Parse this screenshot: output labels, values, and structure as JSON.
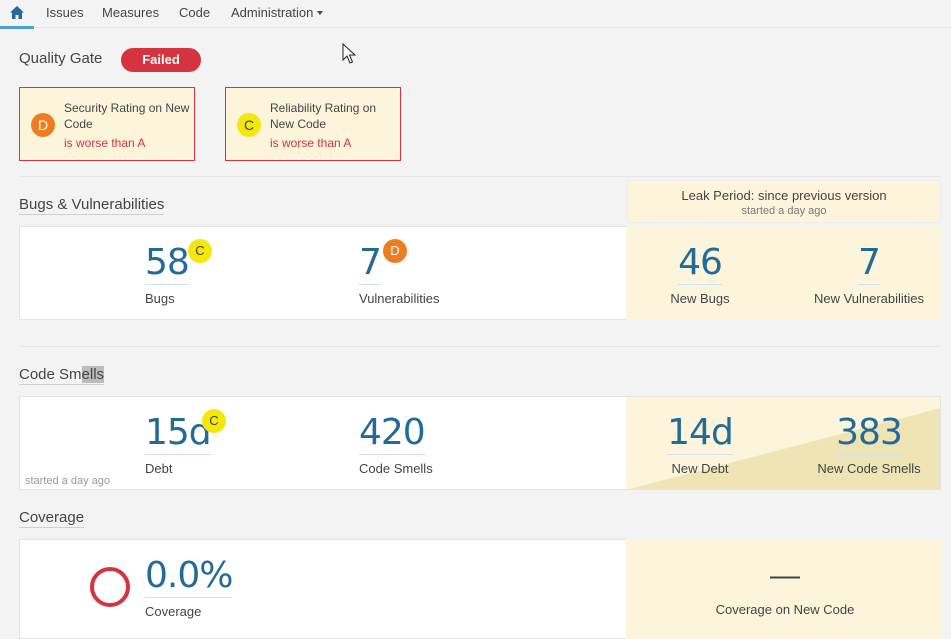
{
  "nav": {
    "items": [
      "Issues",
      "Measures",
      "Code",
      "Administration"
    ]
  },
  "quality_gate": {
    "title": "Quality Gate",
    "status": "Failed",
    "conditions": [
      {
        "rating": "D",
        "metric": "Security Rating on New Code",
        "error": "is worse than A"
      },
      {
        "rating": "C",
        "metric": "Reliability Rating on New Code",
        "error": "is worse than A"
      }
    ]
  },
  "leak": {
    "title": "Leak Period: since previous version",
    "subtitle": "started a day ago"
  },
  "bugs_vulns": {
    "title_part1": "Bugs",
    "title_amp": " & ",
    "title_part2": "Vulnerabilities",
    "bugs": {
      "value": "58",
      "label": "Bugs",
      "rating": "C"
    },
    "vulnerabilities": {
      "value": "7",
      "label": "Vulnerabilities",
      "rating": "D"
    },
    "new_bugs": {
      "value": "46",
      "label": "New Bugs"
    },
    "new_vulnerabilities": {
      "value": "7",
      "label": "New Vulnerabilities"
    }
  },
  "code_smells": {
    "title_a": "Code Sm",
    "title_b": "ells",
    "debt": {
      "value": "15d",
      "label": "Debt",
      "rating": "C"
    },
    "smells": {
      "value": "420",
      "label": "Code Smells"
    },
    "new_debt": {
      "value": "14d",
      "label": "New Debt"
    },
    "new_smells": {
      "value": "383",
      "label": "New Code Smells"
    },
    "note": "started a day ago"
  },
  "coverage": {
    "title": "Coverage",
    "value": "0.0%",
    "label": "Coverage",
    "new_value": "—",
    "new_label": "Coverage on New Code"
  },
  "colors": {
    "accent": "#4b9fd5",
    "error": "#d4333f",
    "rating_d": "#ed7d20",
    "rating_c": "#f4e70b",
    "leak_bg": "#fcf5dc",
    "value_blue": "#236a97"
  }
}
